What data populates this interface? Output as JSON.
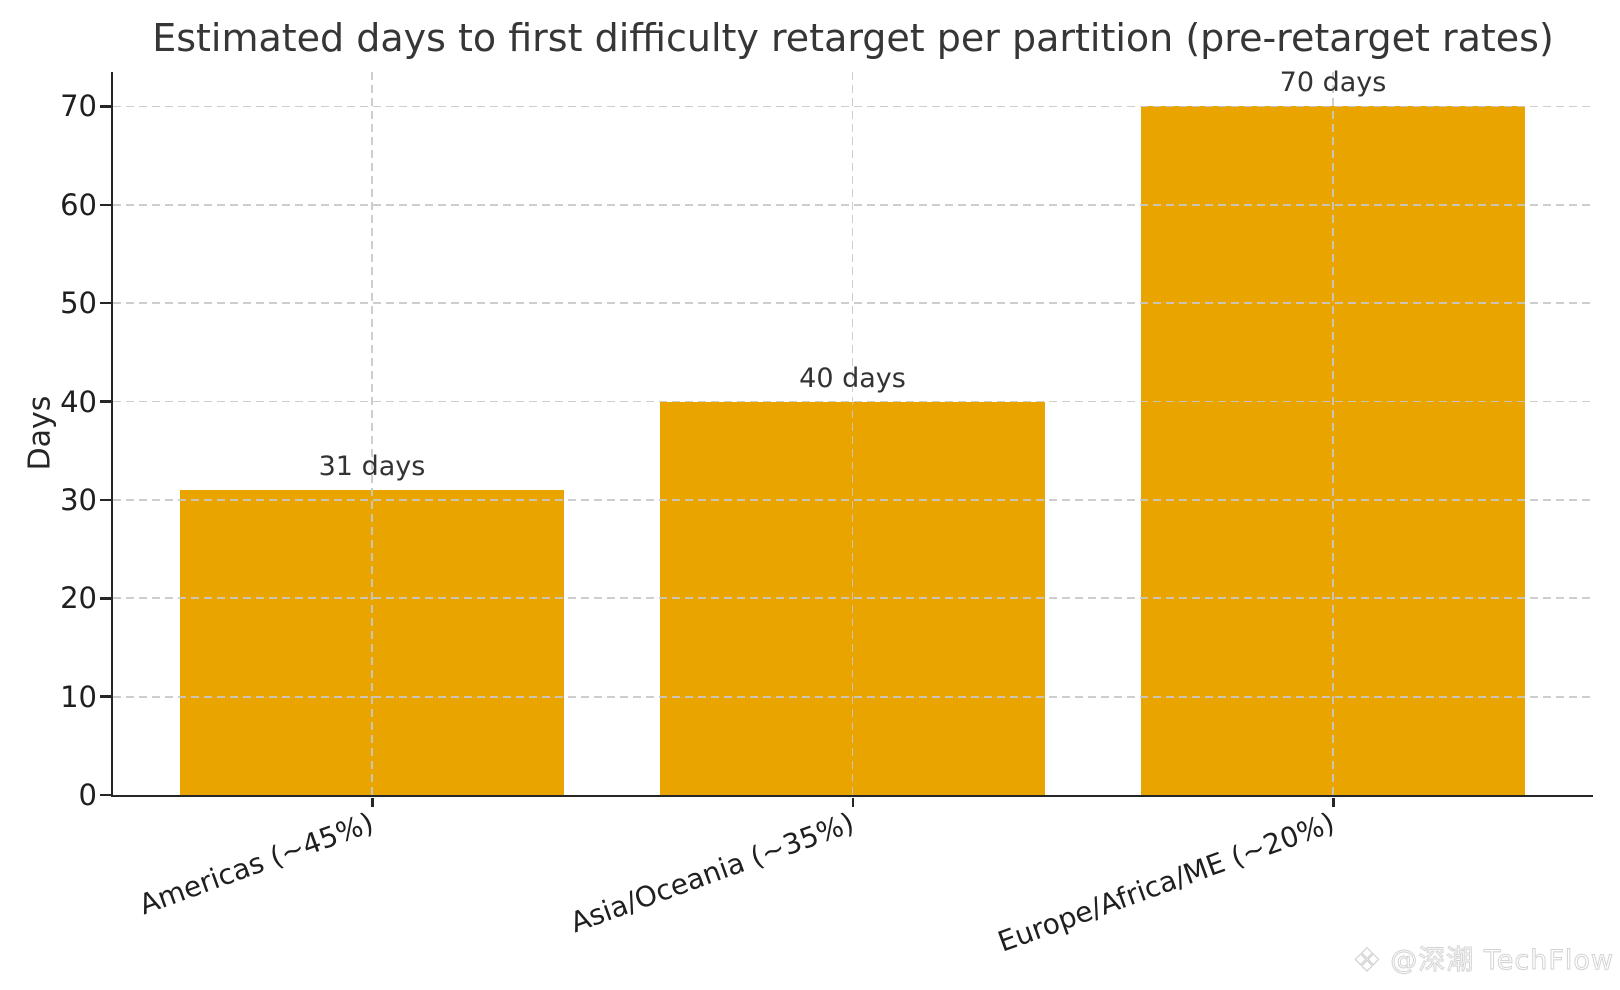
{
  "chart_data": {
    "type": "bar",
    "title": "Estimated days to first difficulty retarget per partition (pre-retarget rates)",
    "xlabel": "",
    "ylabel": "Days",
    "categories": [
      "Americas (~45%)",
      "Asia/Oceania (~35%)",
      "Europe/Africa/ME (~20%)"
    ],
    "values": [
      31,
      40,
      70
    ],
    "bar_labels": [
      "31 days",
      "40 days",
      "70 days"
    ],
    "yticks": [
      0,
      10,
      20,
      30,
      40,
      50,
      60,
      70
    ],
    "ylim": [
      0,
      73.5
    ],
    "grid": "dashed, horizontal and vertical, light gray, drawn over bars",
    "legend": "none",
    "x_label_rotation_deg": 20,
    "colors": {
      "bar": "#E9A400",
      "axis": "#262626",
      "grid": "#c8c8c8",
      "text": "#333333"
    }
  },
  "watermark": {
    "icon": "❖",
    "text": "@深潮 TechFlow"
  }
}
